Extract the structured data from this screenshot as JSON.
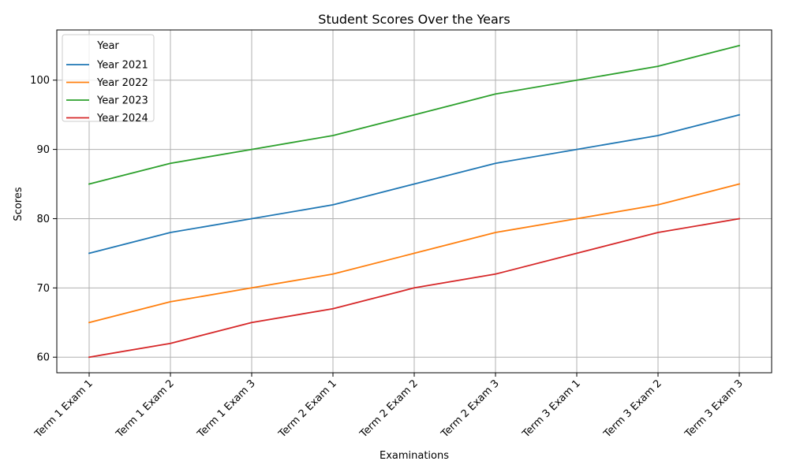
{
  "chart_data": {
    "type": "line",
    "title": "Student Scores Over the Years",
    "xlabel": "Examinations",
    "ylabel": "Scores",
    "categories": [
      "Term 1 Exam 1",
      "Term 1 Exam 2",
      "Term 1 Exam 3",
      "Term 2 Exam 1",
      "Term 2 Exam 2",
      "Term 2 Exam 3",
      "Term 3 Exam 1",
      "Term 3 Exam 2",
      "Term 3 Exam 3"
    ],
    "yticks": [
      60,
      70,
      80,
      90,
      100
    ],
    "ylim": [
      57.75,
      107.25
    ],
    "grid": true,
    "legend": {
      "title": "Year",
      "position": "top-left"
    },
    "series": [
      {
        "name": "Year 2021",
        "color": "#1f77b4",
        "values": [
          75,
          78,
          80,
          82,
          85,
          88,
          90,
          92,
          95
        ]
      },
      {
        "name": "Year 2022",
        "color": "#ff7f0e",
        "values": [
          65,
          68,
          70,
          72,
          75,
          78,
          80,
          82,
          85
        ]
      },
      {
        "name": "Year 2023",
        "color": "#2ca02c",
        "values": [
          85,
          88,
          90,
          92,
          95,
          98,
          100,
          102,
          105
        ]
      },
      {
        "name": "Year 2024",
        "color": "#d62728",
        "values": [
          60,
          62,
          65,
          67,
          70,
          72,
          75,
          78,
          80
        ]
      }
    ]
  }
}
